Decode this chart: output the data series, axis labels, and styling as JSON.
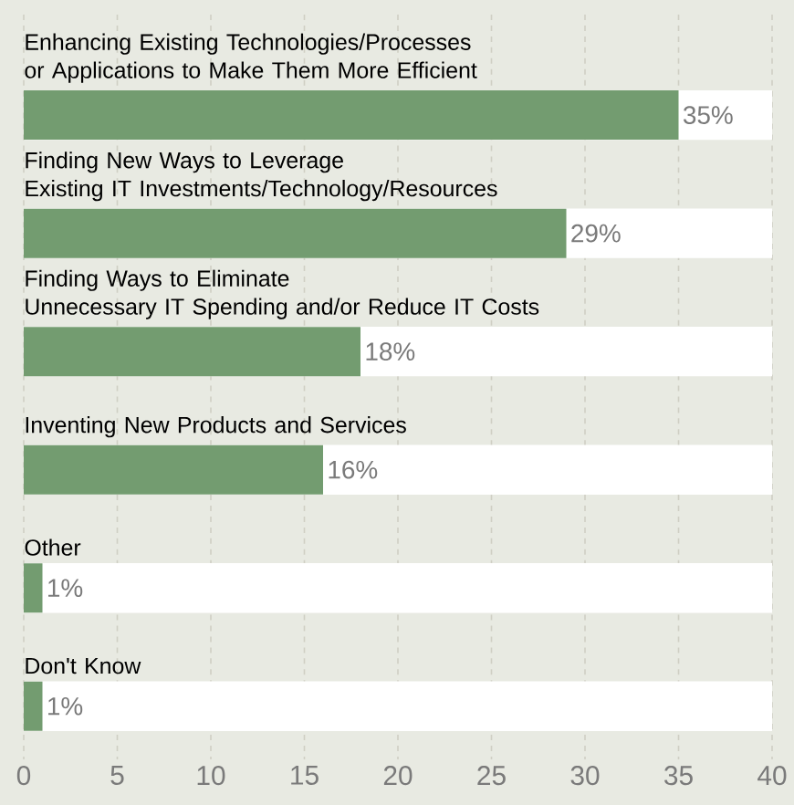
{
  "chart_data": {
    "type": "bar",
    "orientation": "horizontal",
    "categories": [
      "Enhancing Existing Technologies/Processes\nor Applications to Make Them More Efficient",
      "Finding New Ways to Leverage\nExisting IT Investments/Technology/Resources",
      "Finding Ways to Eliminate\nUnnecessary IT Spending and/or Reduce IT Costs",
      "Inventing New Products and Services",
      "Other",
      "Don't Know"
    ],
    "values": [
      35,
      29,
      18,
      16,
      1,
      1
    ],
    "value_labels": [
      "35%",
      "29%",
      "18%",
      "16%",
      "1%",
      "1%"
    ],
    "color": "#739c70",
    "xlim": [
      0,
      40
    ],
    "xticks": [
      0,
      5,
      10,
      15,
      20,
      25,
      30,
      35,
      40
    ],
    "grid": "x"
  }
}
